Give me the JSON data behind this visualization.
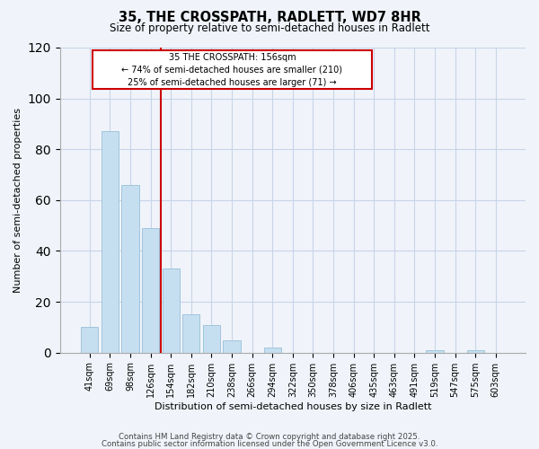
{
  "title": "35, THE CROSSPATH, RADLETT, WD7 8HR",
  "subtitle": "Size of property relative to semi-detached houses in Radlett",
  "xlabel": "Distribution of semi-detached houses by size in Radlett",
  "ylabel": "Number of semi-detached properties",
  "bar_labels": [
    "41sqm",
    "69sqm",
    "98sqm",
    "126sqm",
    "154sqm",
    "182sqm",
    "210sqm",
    "238sqm",
    "266sqm",
    "294sqm",
    "322sqm",
    "350sqm",
    "378sqm",
    "406sqm",
    "435sqm",
    "463sqm",
    "491sqm",
    "519sqm",
    "547sqm",
    "575sqm",
    "603sqm"
  ],
  "bar_values": [
    10,
    87,
    66,
    49,
    33,
    15,
    11,
    5,
    0,
    2,
    0,
    0,
    0,
    0,
    0,
    0,
    0,
    1,
    0,
    1,
    0
  ],
  "bar_color": "#c6dff0",
  "bar_edge_color": "#a0c4dc",
  "vline_color": "#cc0000",
  "ylim": [
    0,
    120
  ],
  "yticks": [
    0,
    20,
    40,
    60,
    80,
    100,
    120
  ],
  "annotation_title": "35 THE CROSSPATH: 156sqm",
  "annotation_line1": "← 74% of semi-detached houses are smaller (210)",
  "annotation_line2": "25% of semi-detached houses are larger (71) →",
  "annotation_box_color": "#cc0000",
  "footer1": "Contains HM Land Registry data © Crown copyright and database right 2025.",
  "footer2": "Contains public sector information licensed under the Open Government Licence v3.0.",
  "background_color": "#f0f4fa",
  "grid_color": "#c8d4e8"
}
